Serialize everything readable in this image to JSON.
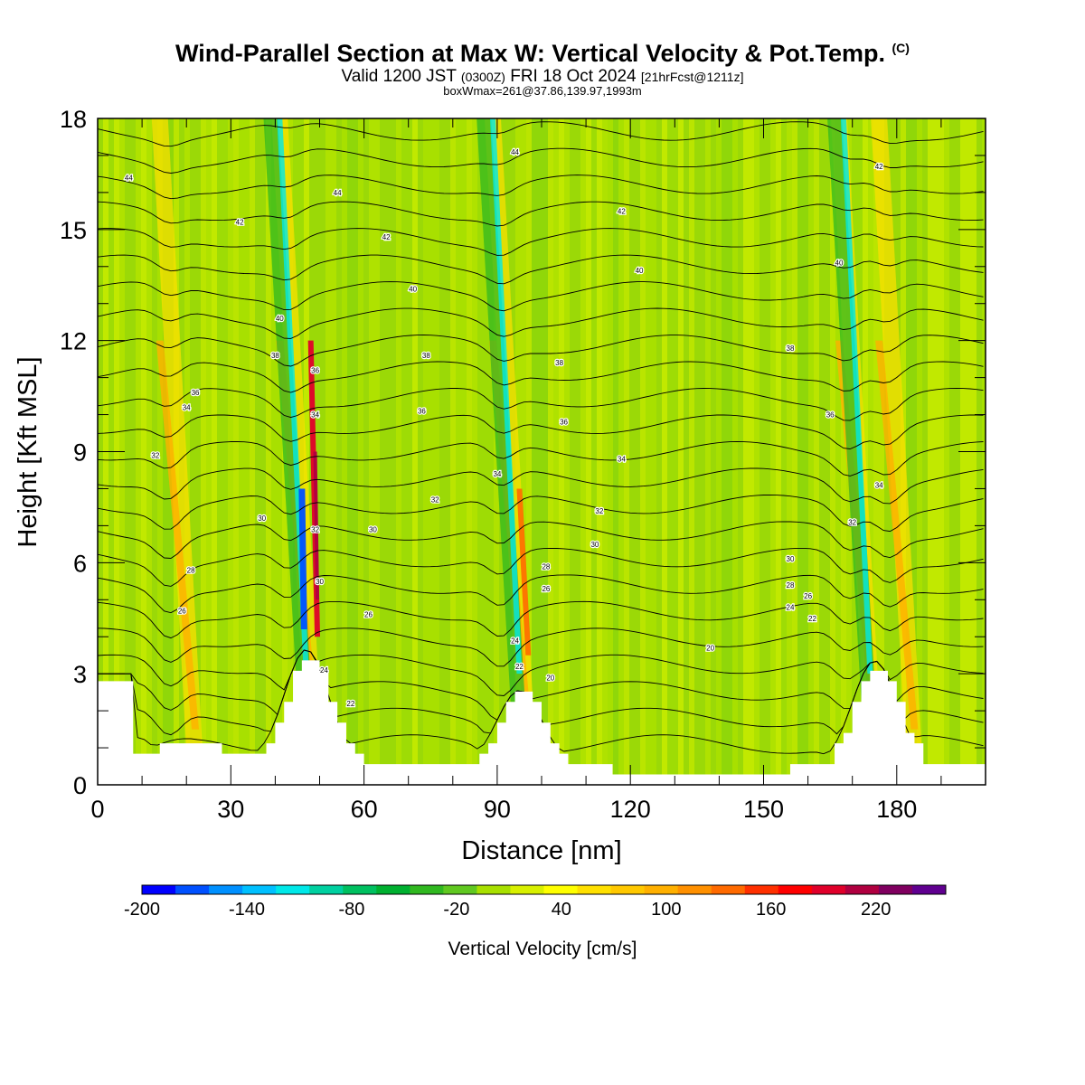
{
  "header": {
    "title": "Wind-Parallel Section at Max W: Vertical Velocity & Pot.Temp.",
    "copyright": "(C)",
    "valid_prefix": "Valid 1200 JST",
    "valid_utc": "(0300Z)",
    "valid_date": "FRI 18 Oct 2024",
    "forecast_tag": "[21hrFcst@1211z]",
    "box_info": "boxWmax=261@37.86,139.97,1993m"
  },
  "chart_data": {
    "type": "heatmap",
    "title": "Wind-Parallel Section at Max W: Vertical Velocity & Pot.Temp.",
    "xlabel": "Distance [nm]",
    "ylabel": "Height [Kft MSL]",
    "xlim": [
      0,
      200
    ],
    "ylim": [
      0,
      18
    ],
    "x_ticks": [
      0,
      30,
      60,
      90,
      120,
      150,
      180
    ],
    "y_ticks": [
      0,
      3,
      6,
      9,
      12,
      15,
      18
    ],
    "colorbar": {
      "label": "Vertical Velocity [cm/s]",
      "tick_labels": [
        -200,
        -140,
        -80,
        -20,
        40,
        100,
        160,
        220
      ],
      "levels": [
        -200,
        -180,
        -160,
        -140,
        -120,
        -100,
        -80,
        -60,
        -40,
        -20,
        0,
        20,
        40,
        60,
        80,
        100,
        120,
        140,
        160,
        180,
        200,
        220,
        240,
        260
      ],
      "colors": [
        "#0000ff",
        "#0050ff",
        "#0090ff",
        "#00c0ff",
        "#00e8e8",
        "#00d0a0",
        "#00c060",
        "#00b030",
        "#30b820",
        "#60c820",
        "#a8e000",
        "#d8f000",
        "#ffff00",
        "#ffe000",
        "#ffc800",
        "#ffb000",
        "#ff9000",
        "#ff6a00",
        "#ff3000",
        "#ff0000",
        "#e0002a",
        "#b00040",
        "#800060",
        "#600090"
      ]
    },
    "updraft_cores_nm": [
      22,
      49,
      97,
      175,
      184
    ],
    "downdraft_cores_nm": [
      47,
      95,
      174
    ],
    "terrain_peaks": [
      {
        "x": 47,
        "height_kft": 3.9
      },
      {
        "x": 95,
        "height_kft": 2.8
      },
      {
        "x": 175,
        "height_kft": 3.6
      }
    ],
    "isentrope_labels_K": [
      {
        "x": 7,
        "y": 16.4,
        "text": "44"
      },
      {
        "x": 32,
        "y": 15.2,
        "text": "42"
      },
      {
        "x": 54,
        "y": 16.0,
        "text": "44"
      },
      {
        "x": 65,
        "y": 14.8,
        "text": "42"
      },
      {
        "x": 94,
        "y": 17.1,
        "text": "44"
      },
      {
        "x": 118,
        "y": 15.5,
        "text": "42"
      },
      {
        "x": 176,
        "y": 16.7,
        "text": "42"
      },
      {
        "x": 41,
        "y": 12.6,
        "text": "40"
      },
      {
        "x": 71,
        "y": 13.4,
        "text": "40"
      },
      {
        "x": 122,
        "y": 13.9,
        "text": "40"
      },
      {
        "x": 167,
        "y": 14.1,
        "text": "40"
      },
      {
        "x": 40,
        "y": 11.6,
        "text": "38"
      },
      {
        "x": 49,
        "y": 11.2,
        "text": "36"
      },
      {
        "x": 74,
        "y": 11.6,
        "text": "38"
      },
      {
        "x": 104,
        "y": 11.4,
        "text": "38"
      },
      {
        "x": 156,
        "y": 11.8,
        "text": "38"
      },
      {
        "x": 22,
        "y": 10.6,
        "text": "36"
      },
      {
        "x": 20,
        "y": 10.2,
        "text": "34"
      },
      {
        "x": 73,
        "y": 10.1,
        "text": "36"
      },
      {
        "x": 105,
        "y": 9.8,
        "text": "36"
      },
      {
        "x": 165,
        "y": 10.0,
        "text": "36"
      },
      {
        "x": 49,
        "y": 10.0,
        "text": "34"
      },
      {
        "x": 13,
        "y": 8.9,
        "text": "32"
      },
      {
        "x": 90,
        "y": 8.4,
        "text": "34"
      },
      {
        "x": 118,
        "y": 8.8,
        "text": "34"
      },
      {
        "x": 176,
        "y": 8.1,
        "text": "34"
      },
      {
        "x": 76,
        "y": 7.7,
        "text": "32"
      },
      {
        "x": 113,
        "y": 7.4,
        "text": "32"
      },
      {
        "x": 170,
        "y": 7.1,
        "text": "32"
      },
      {
        "x": 37,
        "y": 7.2,
        "text": "30"
      },
      {
        "x": 49,
        "y": 6.9,
        "text": "32"
      },
      {
        "x": 62,
        "y": 6.9,
        "text": "30"
      },
      {
        "x": 112,
        "y": 6.5,
        "text": "30"
      },
      {
        "x": 156,
        "y": 6.1,
        "text": "30"
      },
      {
        "x": 21,
        "y": 5.8,
        "text": "28"
      },
      {
        "x": 101,
        "y": 5.9,
        "text": "28"
      },
      {
        "x": 50,
        "y": 5.5,
        "text": "30"
      },
      {
        "x": 156,
        "y": 5.4,
        "text": "28"
      },
      {
        "x": 101,
        "y": 5.3,
        "text": "26"
      },
      {
        "x": 160,
        "y": 5.1,
        "text": "26"
      },
      {
        "x": 19,
        "y": 4.7,
        "text": "26"
      },
      {
        "x": 61,
        "y": 4.6,
        "text": "26"
      },
      {
        "x": 156,
        "y": 4.8,
        "text": "24"
      },
      {
        "x": 161,
        "y": 4.5,
        "text": "22"
      },
      {
        "x": 94,
        "y": 3.9,
        "text": "24"
      },
      {
        "x": 95,
        "y": 3.2,
        "text": "22"
      },
      {
        "x": 51,
        "y": 3.1,
        "text": "24"
      },
      {
        "x": 102,
        "y": 2.9,
        "text": "20"
      },
      {
        "x": 138,
        "y": 3.7,
        "text": "20"
      },
      {
        "x": 57,
        "y": 2.2,
        "text": "22"
      }
    ]
  }
}
